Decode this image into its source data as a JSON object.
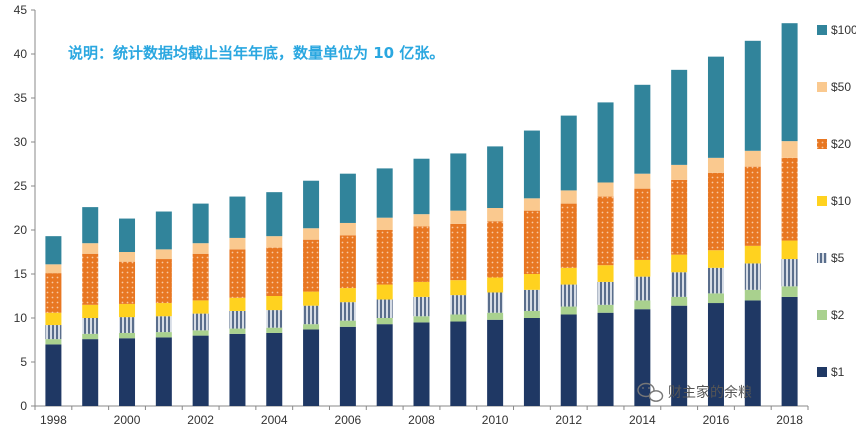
{
  "chart_data": {
    "type": "bar",
    "stacked": true,
    "title": "",
    "xlabel": "",
    "ylabel": "",
    "ylim": [
      0,
      45
    ],
    "yticks": [
      0,
      5,
      10,
      15,
      20,
      25,
      30,
      35,
      40,
      45
    ],
    "grid": false,
    "legend_position": "right",
    "annotation": "说明：统计数据均截止当年年底，数量单位为 10 亿张。",
    "watermark": "财主家的余粮",
    "categories": [
      "1998",
      "1999",
      "2000",
      "2001",
      "2002",
      "2003",
      "2004",
      "2005",
      "2006",
      "2007",
      "2008",
      "2009",
      "2010",
      "2011",
      "2012",
      "2013",
      "2014",
      "2015",
      "2016",
      "2017",
      "2018"
    ],
    "xtick_labels": [
      "1998",
      "2000",
      "2002",
      "2004",
      "2006",
      "2008",
      "2010",
      "2012",
      "2014",
      "2016",
      "2018"
    ],
    "series": [
      {
        "name": "$1",
        "color": "#1f3864",
        "pattern": "solid",
        "values": [
          7.0,
          7.6,
          7.7,
          7.8,
          8.0,
          8.2,
          8.3,
          8.7,
          9.0,
          9.3,
          9.5,
          9.6,
          9.8,
          10.0,
          10.4,
          10.6,
          11.0,
          11.4,
          11.7,
          12.0,
          12.4
        ]
      },
      {
        "name": "$2",
        "color": "#a9d18e",
        "pattern": "solid",
        "values": [
          0.6,
          0.6,
          0.6,
          0.6,
          0.6,
          0.6,
          0.6,
          0.6,
          0.7,
          0.7,
          0.7,
          0.8,
          0.8,
          0.8,
          0.9,
          0.9,
          1.0,
          1.0,
          1.1,
          1.2,
          1.2
        ]
      },
      {
        "name": "$5",
        "color": "#8497b0",
        "pattern": "stripe",
        "values": [
          1.6,
          1.8,
          1.8,
          1.8,
          1.9,
          2.0,
          2.0,
          2.1,
          2.1,
          2.1,
          2.2,
          2.2,
          2.3,
          2.4,
          2.5,
          2.6,
          2.7,
          2.8,
          2.9,
          3.0,
          3.1
        ]
      },
      {
        "name": "$10",
        "color": "#ffd21f",
        "pattern": "solid",
        "values": [
          1.4,
          1.5,
          1.5,
          1.5,
          1.5,
          1.5,
          1.6,
          1.6,
          1.6,
          1.7,
          1.7,
          1.7,
          1.7,
          1.8,
          1.9,
          1.9,
          1.9,
          2.0,
          2.0,
          2.0,
          2.1
        ]
      },
      {
        "name": "$20",
        "color": "#e87722",
        "pattern": "dots",
        "values": [
          4.5,
          5.8,
          4.8,
          5.0,
          5.3,
          5.5,
          5.5,
          5.9,
          6.0,
          6.2,
          6.3,
          6.4,
          6.4,
          7.2,
          7.3,
          7.8,
          8.1,
          8.5,
          8.8,
          9.0,
          9.4
        ]
      },
      {
        "name": "$50",
        "color": "#fac98f",
        "pattern": "solid",
        "values": [
          1.0,
          1.2,
          1.1,
          1.1,
          1.2,
          1.3,
          1.3,
          1.3,
          1.4,
          1.4,
          1.4,
          1.5,
          1.5,
          1.4,
          1.5,
          1.6,
          1.7,
          1.7,
          1.7,
          1.8,
          1.9
        ]
      },
      {
        "name": "$100",
        "color": "#31849b",
        "pattern": "solid",
        "values": [
          3.2,
          4.1,
          3.8,
          4.3,
          4.5,
          4.7,
          5.0,
          5.4,
          5.6,
          5.6,
          6.3,
          6.5,
          7.0,
          7.7,
          8.5,
          9.1,
          10.1,
          10.8,
          11.5,
          12.5,
          13.4
        ]
      }
    ]
  }
}
